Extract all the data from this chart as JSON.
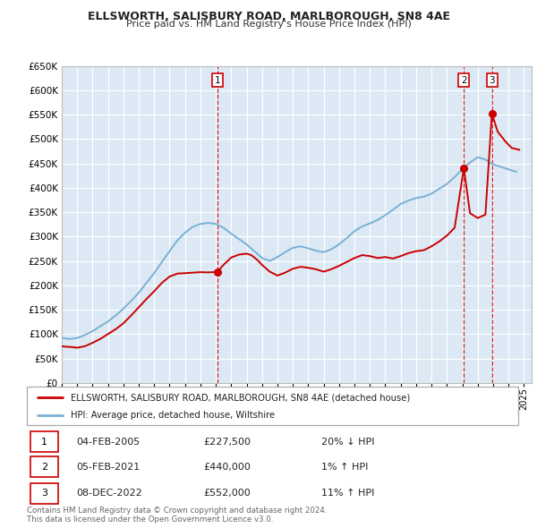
{
  "title": "ELLSWORTH, SALISBURY ROAD, MARLBOROUGH, SN8 4AE",
  "subtitle": "Price paid vs. HM Land Registry's House Price Index (HPI)",
  "property_label": "ELLSWORTH, SALISBURY ROAD, MARLBOROUGH, SN8 4AE (detached house)",
  "hpi_label": "HPI: Average price, detached house, Wiltshire",
  "property_color": "#cc0000",
  "hpi_color": "#7ab0d4",
  "bg_color": "#dce9f5",
  "grid_color": "#ffffff",
  "ylim": [
    0,
    650000
  ],
  "yticks": [
    0,
    50000,
    100000,
    150000,
    200000,
    250000,
    300000,
    350000,
    400000,
    450000,
    500000,
    550000,
    600000,
    650000
  ],
  "xmin": 1995.0,
  "xmax": 2025.5,
  "transactions": [
    {
      "num": 1,
      "date": "04-FEB-2005",
      "price": 227500,
      "year": 2005.1,
      "hpi_pct": "20%",
      "hpi_dir": "↓"
    },
    {
      "num": 2,
      "date": "05-FEB-2021",
      "price": 440000,
      "year": 2021.1,
      "hpi_pct": "1%",
      "hpi_dir": "↑"
    },
    {
      "num": 3,
      "date": "08-DEC-2022",
      "price": 552000,
      "year": 2022.92,
      "hpi_pct": "11%",
      "hpi_dir": "↑"
    }
  ],
  "footer1": "Contains HM Land Registry data © Crown copyright and database right 2024.",
  "footer2": "This data is licensed under the Open Government Licence v3.0.",
  "property_line": {
    "x": [
      1995.0,
      1995.3,
      1995.6,
      1996.0,
      1996.5,
      1997.0,
      1997.5,
      1998.0,
      1998.5,
      1999.0,
      1999.5,
      2000.0,
      2000.5,
      2001.0,
      2001.5,
      2002.0,
      2002.5,
      2003.0,
      2003.5,
      2004.0,
      2004.5,
      2005.1,
      2005.5,
      2006.0,
      2006.5,
      2007.0,
      2007.3,
      2007.7,
      2008.0,
      2008.5,
      2009.0,
      2009.5,
      2010.0,
      2010.5,
      2011.0,
      2011.5,
      2012.0,
      2012.5,
      2013.0,
      2013.5,
      2014.0,
      2014.5,
      2015.0,
      2015.5,
      2016.0,
      2016.5,
      2017.0,
      2017.5,
      2018.0,
      2018.5,
      2019.0,
      2019.5,
      2020.0,
      2020.5,
      2021.1,
      2021.5,
      2022.0,
      2022.5,
      2022.92,
      2023.3,
      2023.8,
      2024.2,
      2024.7
    ],
    "y": [
      75000,
      74000,
      73500,
      72000,
      75000,
      82000,
      90000,
      100000,
      110000,
      122000,
      138000,
      155000,
      172000,
      188000,
      205000,
      218000,
      224000,
      225000,
      226000,
      227000,
      226500,
      227500,
      242000,
      257000,
      263000,
      265000,
      262000,
      252000,
      242000,
      228000,
      220000,
      226000,
      234000,
      238000,
      236000,
      233000,
      228000,
      233000,
      240000,
      248000,
      256000,
      262000,
      260000,
      256000,
      258000,
      255000,
      260000,
      266000,
      270000,
      272000,
      280000,
      290000,
      302000,
      318000,
      440000,
      348000,
      338000,
      345000,
      552000,
      515000,
      495000,
      482000,
      478000
    ]
  },
  "hpi_line": {
    "x": [
      1995.0,
      1995.5,
      1996.0,
      1996.5,
      1997.0,
      1997.5,
      1998.0,
      1998.5,
      1999.0,
      1999.5,
      2000.0,
      2000.5,
      2001.0,
      2001.5,
      2002.0,
      2002.5,
      2003.0,
      2003.5,
      2004.0,
      2004.5,
      2005.0,
      2005.5,
      2006.0,
      2006.5,
      2007.0,
      2007.5,
      2008.0,
      2008.5,
      2009.0,
      2009.5,
      2010.0,
      2010.5,
      2011.0,
      2011.5,
      2012.0,
      2012.5,
      2013.0,
      2013.5,
      2014.0,
      2014.5,
      2015.0,
      2015.5,
      2016.0,
      2016.5,
      2017.0,
      2017.5,
      2018.0,
      2018.5,
      2019.0,
      2019.5,
      2020.0,
      2020.5,
      2021.0,
      2021.5,
      2022.0,
      2022.5,
      2023.0,
      2023.5,
      2024.0,
      2024.5
    ],
    "y": [
      92000,
      90000,
      92000,
      98000,
      106000,
      116000,
      126000,
      138000,
      152000,
      168000,
      185000,
      205000,
      225000,
      248000,
      270000,
      292000,
      308000,
      320000,
      326000,
      328000,
      326000,
      318000,
      306000,
      295000,
      284000,
      270000,
      256000,
      250000,
      258000,
      268000,
      277000,
      280000,
      276000,
      271000,
      268000,
      274000,
      284000,
      297000,
      311000,
      321000,
      327000,
      334000,
      344000,
      355000,
      367000,
      374000,
      379000,
      382000,
      388000,
      398000,
      408000,
      422000,
      438000,
      452000,
      463000,
      458000,
      448000,
      443000,
      438000,
      433000
    ]
  }
}
